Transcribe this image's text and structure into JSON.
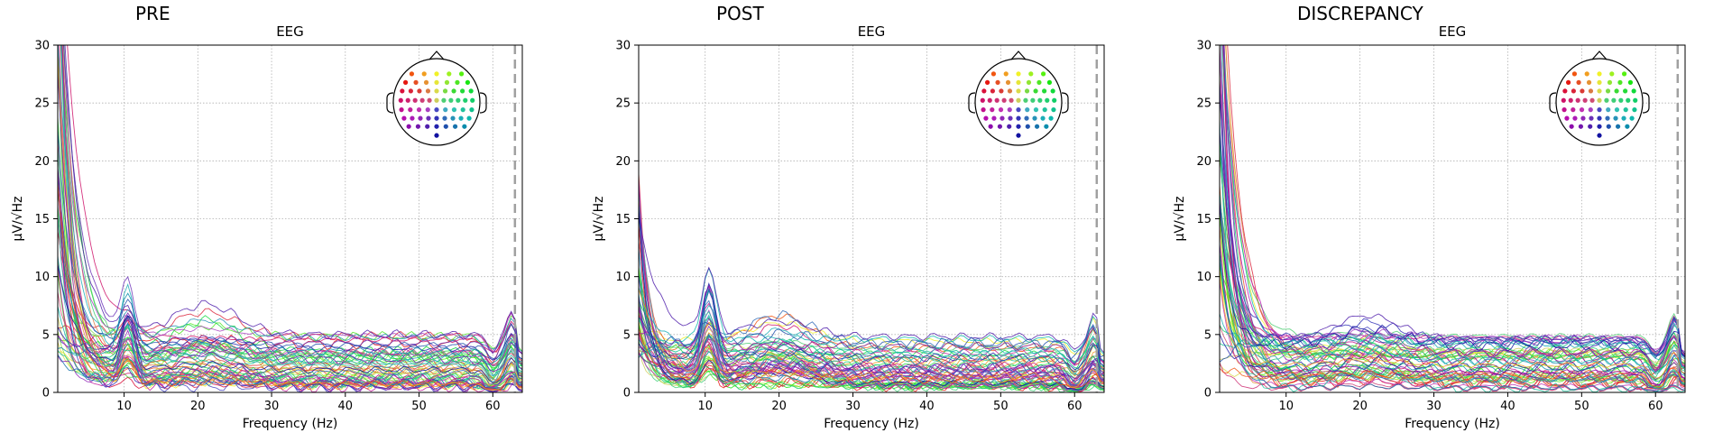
{
  "chart_data": [
    {
      "type": "line",
      "title": "PRE",
      "subtitle": "EEG",
      "xlabel": "Frequency (Hz)",
      "ylabel": "µV/√Hz",
      "xlim": [
        1,
        64
      ],
      "ylim": [
        0,
        30
      ],
      "xticks": [
        "10",
        "20",
        "30",
        "40",
        "50",
        "60"
      ],
      "yticks": [
        "0",
        "5",
        "10",
        "15",
        "20",
        "25",
        "30"
      ],
      "grid": true,
      "legend": "top-right sensor topography inset",
      "marker_line_hz": 63,
      "series_profile": {
        "num_channels": 60,
        "alpha_peak_hz": 10.5,
        "low_freq_amplitude_range": [
          3,
          45
        ],
        "tail_amplitude_range": [
          0.5,
          5
        ],
        "beta_bump_hz": 21,
        "beta_bump_amplitude": 3,
        "alpha_peak_amplitude": 4
      }
    },
    {
      "type": "line",
      "title": "POST",
      "subtitle": "EEG",
      "xlabel": "Frequency (Hz)",
      "ylabel": "µV/√Hz",
      "xlim": [
        1,
        64
      ],
      "ylim": [
        0,
        30
      ],
      "xticks": [
        "10",
        "20",
        "30",
        "40",
        "50",
        "60"
      ],
      "yticks": [
        "0",
        "5",
        "10",
        "15",
        "20",
        "25",
        "30"
      ],
      "grid": true,
      "legend": "top-right sensor topography inset",
      "marker_line_hz": 63,
      "series_profile": {
        "num_channels": 60,
        "alpha_peak_hz": 10.5,
        "low_freq_amplitude_range": [
          3,
          19
        ],
        "tail_amplitude_range": [
          0.5,
          5
        ],
        "beta_bump_hz": 20,
        "beta_bump_amplitude": 3,
        "alpha_peak_amplitude": 5
      }
    },
    {
      "type": "line",
      "title": "DISCREPANCY",
      "subtitle": "EEG",
      "xlabel": "Frequency (Hz)",
      "ylabel": "µV/√Hz",
      "xlim": [
        1,
        64
      ],
      "ylim": [
        0,
        30
      ],
      "xticks": [
        "10",
        "20",
        "30",
        "40",
        "50",
        "60"
      ],
      "yticks": [
        "0",
        "5",
        "10",
        "15",
        "20",
        "25",
        "30"
      ],
      "grid": true,
      "legend": "top-right sensor topography inset",
      "marker_line_hz": 63,
      "series_profile": {
        "num_channels": 60,
        "alpha_peak_hz": 10.5,
        "low_freq_amplitude_range": [
          2,
          45
        ],
        "tail_amplitude_range": [
          0.3,
          5
        ],
        "beta_bump_hz": 21,
        "beta_bump_amplitude": 2,
        "alpha_peak_amplitude": 0
      }
    }
  ]
}
